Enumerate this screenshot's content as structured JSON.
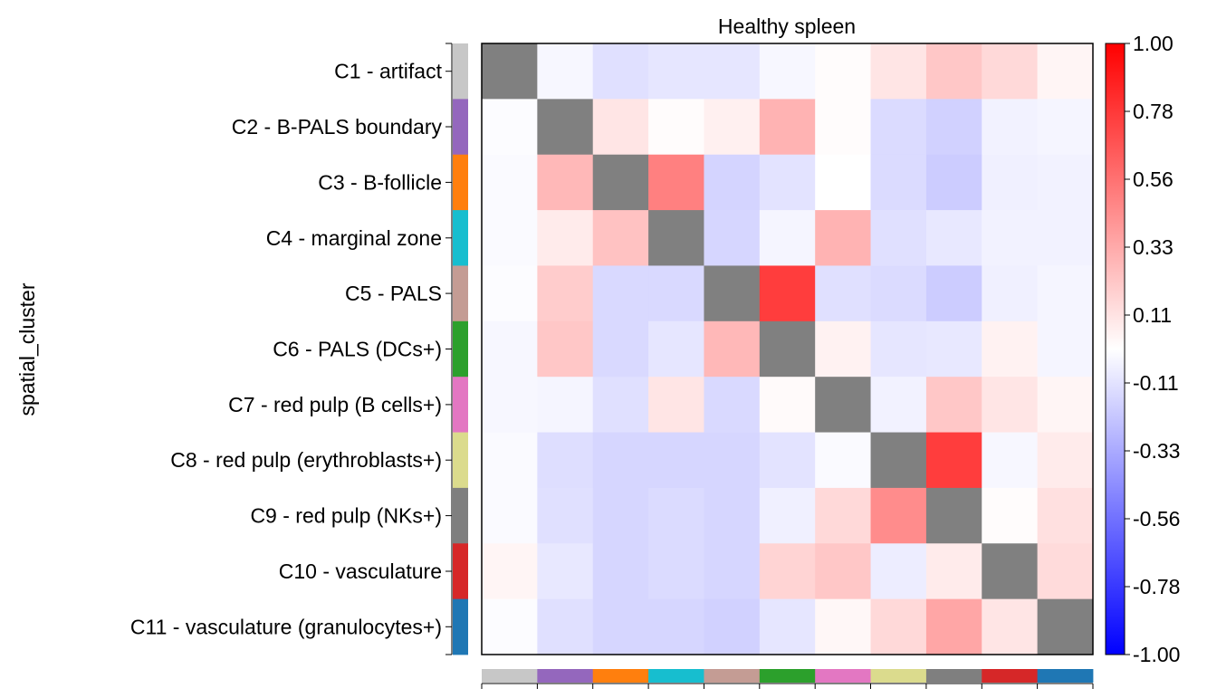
{
  "chart_data": {
    "type": "heatmap",
    "title": "Healthy spleen",
    "ylabel": "spatial_cluster",
    "xlabel": "",
    "rows": [
      "C1 - artifact",
      "C2 - B-PALS boundary",
      "C3 - B-follicle",
      "C4 - marginal zone",
      "C5 - PALS",
      "C6 - PALS (DCs+)",
      "C7 - red pulp (B cells+)",
      "C8 - red pulp (erythroblasts+)",
      "C9 - red pulp (NKs+)",
      "C10 - vasculature",
      "C11 - vasculature (granulocytes+)"
    ],
    "category_colors": [
      "#c7c7c7",
      "#9467bd",
      "#ff7f0e",
      "#17becf",
      "#c49c94",
      "#2ca02c",
      "#e377c2",
      "#dbdb8d",
      "#7f7f7f",
      "#d62728",
      "#1f77b4"
    ],
    "values": [
      [
        null,
        -0.03,
        -0.12,
        -0.1,
        -0.1,
        -0.03,
        0.01,
        0.1,
        0.22,
        0.15,
        0.04
      ],
      [
        -0.01,
        null,
        0.1,
        0.01,
        0.06,
        0.3,
        0.01,
        -0.14,
        -0.18,
        -0.05,
        -0.04
      ],
      [
        -0.02,
        0.28,
        null,
        0.5,
        -0.17,
        -0.11,
        0.0,
        -0.14,
        -0.2,
        -0.06,
        -0.05
      ],
      [
        -0.02,
        0.08,
        0.24,
        null,
        -0.16,
        -0.04,
        0.3,
        -0.12,
        -0.09,
        -0.05,
        -0.05
      ],
      [
        -0.01,
        0.2,
        -0.15,
        -0.15,
        null,
        0.76,
        -0.12,
        -0.14,
        -0.2,
        -0.06,
        -0.04
      ],
      [
        -0.03,
        0.22,
        -0.15,
        -0.1,
        0.28,
        null,
        0.05,
        -0.1,
        -0.09,
        0.05,
        -0.04
      ],
      [
        -0.03,
        -0.04,
        -0.12,
        0.1,
        -0.15,
        0.02,
        null,
        -0.05,
        0.22,
        0.1,
        0.04
      ],
      [
        -0.02,
        -0.13,
        -0.16,
        -0.16,
        -0.16,
        -0.11,
        -0.02,
        null,
        0.76,
        -0.03,
        0.08
      ],
      [
        -0.02,
        -0.12,
        -0.16,
        -0.14,
        -0.16,
        -0.06,
        0.15,
        0.45,
        null,
        0.01,
        0.12
      ],
      [
        0.04,
        -0.09,
        -0.16,
        -0.14,
        -0.16,
        0.17,
        0.22,
        -0.07,
        0.08,
        null,
        0.14
      ],
      [
        -0.01,
        -0.12,
        -0.16,
        -0.16,
        -0.18,
        -0.1,
        0.03,
        0.15,
        0.35,
        0.1,
        null
      ]
    ],
    "diagonal_color": "#808080",
    "colorbar": {
      "min": -1.0,
      "max": 1.0,
      "ticks": [
        "1.00",
        "0.78",
        "0.56",
        "0.33",
        "0.11",
        "-0.11",
        "-0.33",
        "-0.56",
        "-0.78",
        "-1.00"
      ],
      "colors": {
        "low": "#0000ff",
        "mid": "#ffffff",
        "high": "#ff0000"
      }
    }
  }
}
